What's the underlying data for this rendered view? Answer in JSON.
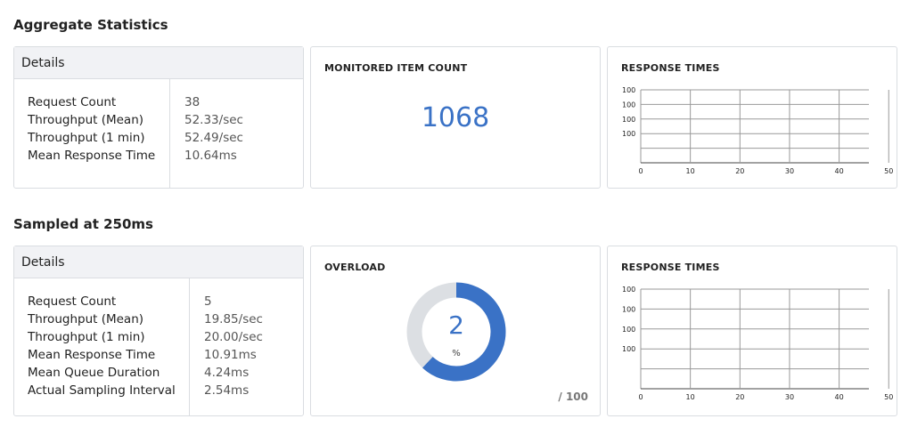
{
  "aggregate": {
    "title": "Aggregate Statistics",
    "details": {
      "header": "Details",
      "rows": [
        {
          "label": "Request Count",
          "value": "38"
        },
        {
          "label": "Throughput (Mean)",
          "value": "52.33/sec"
        },
        {
          "label": "Throughput (1 min)",
          "value": "52.49/sec"
        },
        {
          "label": "Mean Response Time",
          "value": "10.64ms"
        }
      ]
    },
    "monitored": {
      "title": "MONITORED ITEM COUNT",
      "value": "1068"
    },
    "response_times": {
      "title": "RESPONSE TIMES"
    }
  },
  "sampled": {
    "title": "Sampled at 250ms",
    "details": {
      "header": "Details",
      "rows": [
        {
          "label": "Request Count",
          "value": "5"
        },
        {
          "label": "Throughput (Mean)",
          "value": "19.85/sec"
        },
        {
          "label": "Throughput (1 min)",
          "value": "20.00/sec"
        },
        {
          "label": "Mean Response Time",
          "value": "10.91ms"
        },
        {
          "label": "Mean Queue Duration",
          "value": "4.24ms"
        },
        {
          "label": "Actual Sampling Interval",
          "value": "2.54ms"
        }
      ]
    },
    "overload": {
      "title": "OVERLOAD",
      "value": "2",
      "fraction": 0.02,
      "unit": "%",
      "max_label": "/ 100"
    },
    "response_times": {
      "title": "RESPONSE TIMES"
    }
  },
  "colors": {
    "accent": "#3a72c6",
    "gauge_track": "#dcdfe3",
    "grid": "#999999"
  },
  "chart_data": [
    {
      "type": "line",
      "title": "RESPONSE TIMES",
      "xlabel": "",
      "ylabel": "",
      "x_ticks": [
        "0",
        "10",
        "20",
        "30",
        "40",
        "50"
      ],
      "y_ticks": [
        "100",
        "100",
        "100",
        "100"
      ],
      "series": [],
      "grid": true
    },
    {
      "type": "line",
      "title": "RESPONSE TIMES",
      "xlabel": "",
      "ylabel": "",
      "x_ticks": [
        "0",
        "10",
        "20",
        "30",
        "40",
        "50"
      ],
      "y_ticks": [
        "100",
        "100",
        "100",
        "100"
      ],
      "series": [],
      "grid": true
    }
  ]
}
